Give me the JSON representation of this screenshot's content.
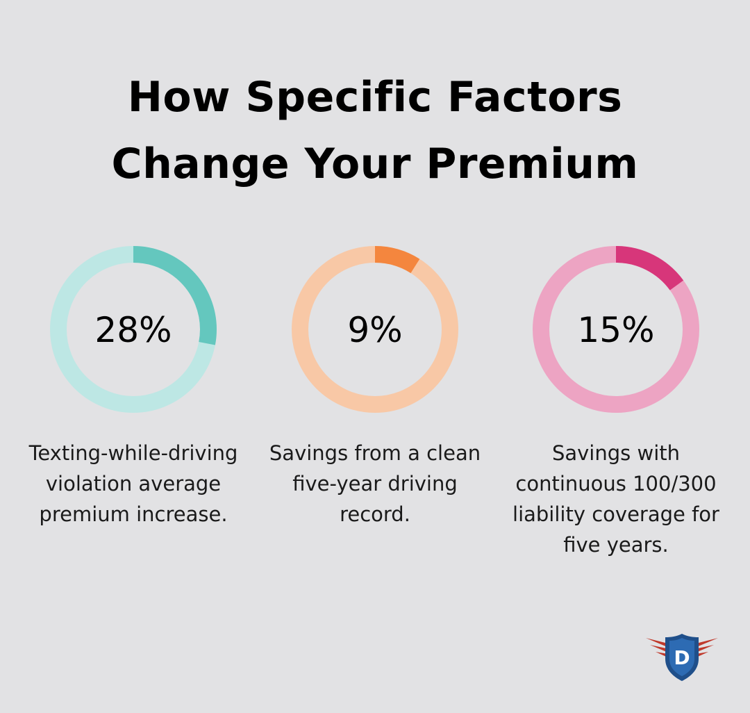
{
  "title_line1": "How Specific Factors",
  "title_line2": "Change Your Premium",
  "chart_data": {
    "type": "pie",
    "title": "How Specific Factors Change Your Premium",
    "items": [
      {
        "value": 28,
        "label": "28%",
        "caption_lines": [
          "Texting-while-driving",
          "violation average",
          "premium increase."
        ],
        "color_fill": "#64c7be",
        "color_track": "#bde7e4"
      },
      {
        "value": 9,
        "label": "9%",
        "caption_lines": [
          "Savings from a clean",
          "five-year driving",
          "record."
        ],
        "color_fill": "#f4863e",
        "color_track": "#f8c8a6"
      },
      {
        "value": 15,
        "label": "15%",
        "caption_lines": [
          "Savings with",
          "continuous 100/300",
          "liability coverage for",
          "five years."
        ],
        "color_fill": "#d7367a",
        "color_track": "#eda4c3"
      }
    ]
  },
  "logo": {
    "letter": "D",
    "shield_color": "#1f4f8a",
    "wing_color": "#c0392b"
  }
}
